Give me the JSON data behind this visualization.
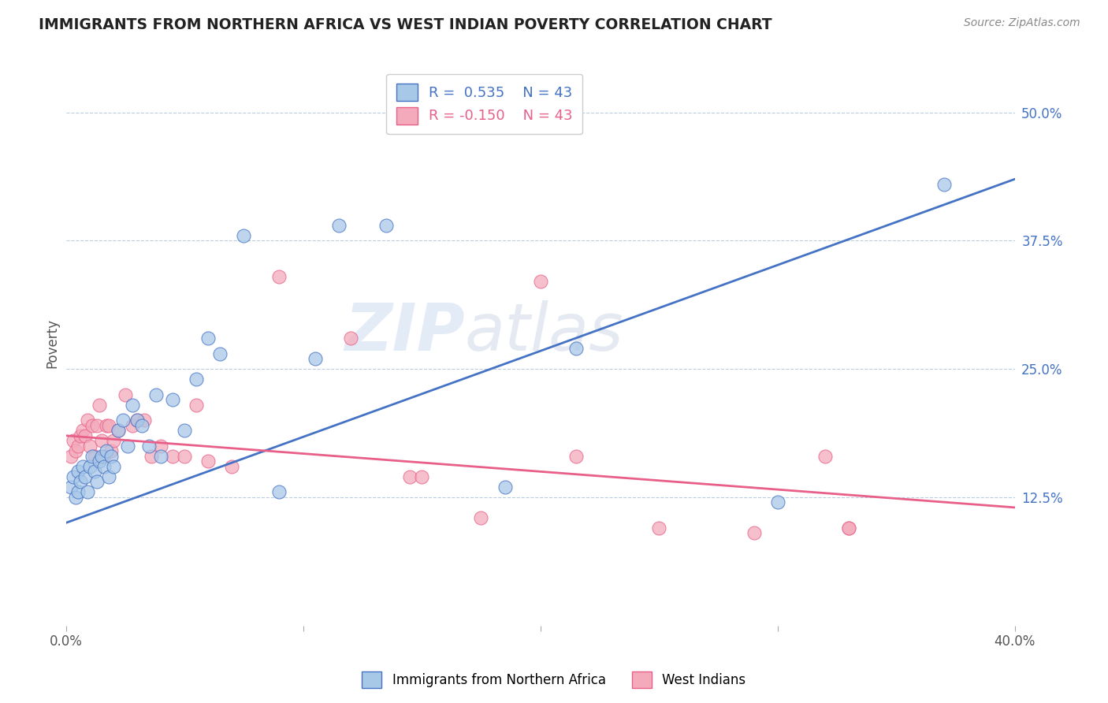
{
  "title": "IMMIGRANTS FROM NORTHERN AFRICA VS WEST INDIAN POVERTY CORRELATION CHART",
  "source": "Source: ZipAtlas.com",
  "ylabel": "Poverty",
  "xlim": [
    0.0,
    0.4
  ],
  "ylim": [
    0.0,
    0.55
  ],
  "xtick_positions": [
    0.0,
    0.1,
    0.2,
    0.3,
    0.4
  ],
  "xtick_labels": [
    "0.0%",
    "",
    "",
    "",
    "40.0%"
  ],
  "ytick_labels": [
    "12.5%",
    "25.0%",
    "37.5%",
    "50.0%"
  ],
  "ytick_positions": [
    0.125,
    0.25,
    0.375,
    0.5
  ],
  "r_blue": 0.535,
  "r_pink": -0.15,
  "n_blue": 43,
  "n_pink": 43,
  "legend_label_blue": "Immigrants from Northern Africa",
  "legend_label_pink": "West Indians",
  "blue_color": "#A8C8E8",
  "pink_color": "#F4AABB",
  "blue_line_color": "#4472C4",
  "pink_line_color": "#E8608A",
  "watermark_zip": "ZIP",
  "watermark_atlas": "atlas",
  "blue_line_x": [
    0.0,
    0.4
  ],
  "blue_line_y": [
    0.1,
    0.435
  ],
  "pink_line_x": [
    0.0,
    0.4
  ],
  "pink_line_y": [
    0.185,
    0.115
  ],
  "blue_x": [
    0.002,
    0.003,
    0.004,
    0.005,
    0.005,
    0.006,
    0.007,
    0.008,
    0.009,
    0.01,
    0.011,
    0.012,
    0.013,
    0.014,
    0.015,
    0.016,
    0.017,
    0.018,
    0.019,
    0.02,
    0.022,
    0.024,
    0.026,
    0.028,
    0.03,
    0.032,
    0.035,
    0.038,
    0.04,
    0.045,
    0.05,
    0.055,
    0.06,
    0.065,
    0.075,
    0.09,
    0.105,
    0.115,
    0.135,
    0.185,
    0.215,
    0.3,
    0.37
  ],
  "blue_y": [
    0.135,
    0.145,
    0.125,
    0.13,
    0.15,
    0.14,
    0.155,
    0.145,
    0.13,
    0.155,
    0.165,
    0.15,
    0.14,
    0.16,
    0.165,
    0.155,
    0.17,
    0.145,
    0.165,
    0.155,
    0.19,
    0.2,
    0.175,
    0.215,
    0.2,
    0.195,
    0.175,
    0.225,
    0.165,
    0.22,
    0.19,
    0.24,
    0.28,
    0.265,
    0.38,
    0.13,
    0.26,
    0.39,
    0.39,
    0.135,
    0.27,
    0.12,
    0.43
  ],
  "pink_x": [
    0.002,
    0.003,
    0.004,
    0.005,
    0.006,
    0.007,
    0.008,
    0.009,
    0.01,
    0.011,
    0.012,
    0.013,
    0.014,
    0.015,
    0.016,
    0.017,
    0.018,
    0.019,
    0.02,
    0.022,
    0.025,
    0.028,
    0.03,
    0.033,
    0.036,
    0.04,
    0.045,
    0.05,
    0.055,
    0.06,
    0.07,
    0.09,
    0.12,
    0.145,
    0.2,
    0.215,
    0.25,
    0.29,
    0.32,
    0.33,
    0.15,
    0.175,
    0.33
  ],
  "pink_y": [
    0.165,
    0.18,
    0.17,
    0.175,
    0.185,
    0.19,
    0.185,
    0.2,
    0.175,
    0.195,
    0.165,
    0.195,
    0.215,
    0.18,
    0.165,
    0.195,
    0.195,
    0.17,
    0.18,
    0.19,
    0.225,
    0.195,
    0.2,
    0.2,
    0.165,
    0.175,
    0.165,
    0.165,
    0.215,
    0.16,
    0.155,
    0.34,
    0.28,
    0.145,
    0.335,
    0.165,
    0.095,
    0.09,
    0.165,
    0.095,
    0.145,
    0.105,
    0.095
  ]
}
